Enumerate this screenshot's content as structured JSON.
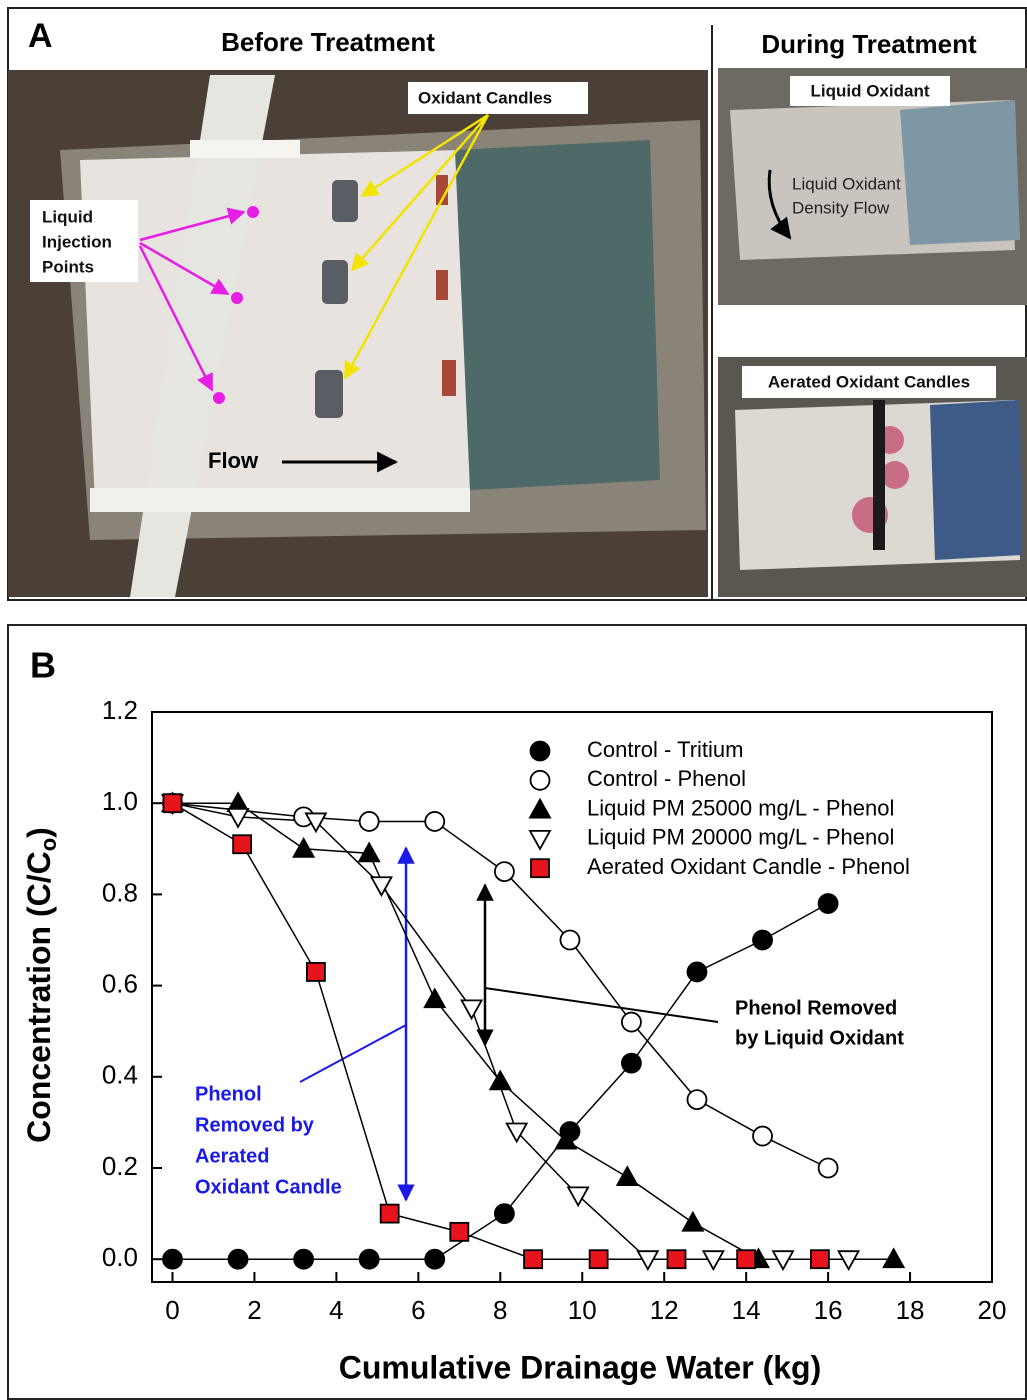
{
  "panel_a": {
    "label": "A",
    "title_before": "Before Treatment",
    "title_during": "During Treatment",
    "oxidant_candles": "Oxidant Candles",
    "liquid_injection_points": [
      "Liquid",
      "Injection",
      "Points"
    ],
    "flow": "Flow",
    "liquid_oxidant": "Liquid Oxidant",
    "density_flow": [
      "Liquid Oxidant",
      "Density Flow"
    ],
    "aerated_candles": "Aerated Oxidant Candles"
  },
  "chart_data": {
    "type": "line",
    "panel_label": "B",
    "x_label": "Cumulative Drainage Water (kg)",
    "y_label": {
      "main": "Concentration (C/C",
      "sub": "o",
      "close": ")"
    },
    "xlim": [
      -0.5,
      20
    ],
    "ylim": [
      -0.05,
      1.2
    ],
    "xticks": [
      0,
      2,
      4,
      6,
      8,
      10,
      12,
      14,
      16,
      18,
      20
    ],
    "yticks": [
      {
        "value": 0,
        "label": "0.0"
      },
      0.2,
      0.4,
      0.6,
      0.8,
      {
        "value": 1,
        "label": "1.0"
      },
      1.2
    ],
    "legend": "upper right",
    "series": [
      {
        "name": "Control - Tritium",
        "color": "#000000",
        "marker": "circle",
        "x": [
          0,
          1.6,
          3.2,
          4.8,
          6.4,
          8.1,
          9.7,
          11.2,
          12.8,
          14.4,
          16.0
        ],
        "values": [
          0,
          0,
          0,
          0,
          0,
          0.1,
          0.28,
          0.43,
          0.63,
          0.7,
          0.78
        ]
      },
      {
        "name": "Control - Phenol",
        "color": "#ffffff",
        "marker": "circle",
        "x": [
          0,
          3.2,
          4.8,
          6.4,
          8.1,
          9.7,
          11.2,
          12.8,
          14.4,
          16.0
        ],
        "values": [
          1.0,
          0.97,
          0.96,
          0.96,
          0.85,
          0.7,
          0.52,
          0.35,
          0.27,
          0.2
        ]
      },
      {
        "name": "Liquid PM 25000 mg/L - Phenol",
        "color": "#000000",
        "marker": "triangle-up",
        "x": [
          0,
          1.6,
          3.2,
          4.8,
          6.4,
          8.0,
          9.6,
          11.1,
          12.7,
          14.3,
          17.6
        ],
        "values": [
          1.0,
          1.0,
          0.9,
          0.89,
          0.57,
          0.39,
          0.26,
          0.18,
          0.08,
          0,
          0
        ]
      },
      {
        "name": "Liquid PM 20000 mg/L - Phenol",
        "color": "#ffffff",
        "marker": "triangle-down",
        "x": [
          0,
          1.6,
          3.5,
          5.1,
          7.3,
          8.4,
          9.9,
          11.6,
          13.2,
          14.9,
          16.5
        ],
        "values": [
          1.0,
          0.97,
          0.96,
          0.82,
          0.55,
          0.28,
          0.14,
          0,
          0,
          0,
          0
        ]
      },
      {
        "name": "Aerated Oxidant Candle - Phenol",
        "color": "#e8141b",
        "marker": "square",
        "x": [
          0,
          1.7,
          3.5,
          5.3,
          7.0,
          8.8,
          10.4,
          12.3,
          14.0,
          15.8
        ],
        "values": [
          1.0,
          0.91,
          0.63,
          0.1,
          0.06,
          0,
          0,
          0,
          0,
          0
        ]
      }
    ],
    "annotations": {
      "candle": [
        "Phenol",
        "Removed by",
        "Aerated",
        "Oxidant Candle"
      ],
      "liquid": [
        "Phenol Removed",
        "by Liquid Oxidant"
      ]
    }
  }
}
